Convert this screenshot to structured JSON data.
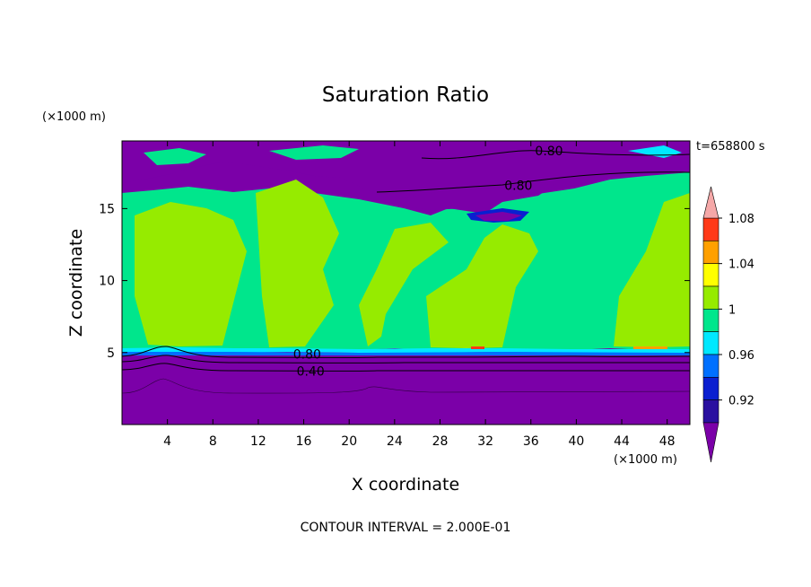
{
  "chart_data": {
    "type": "heatmap",
    "title": "Saturation Ratio",
    "xlabel": "X coordinate",
    "ylabel": "Z coordinate",
    "x_unit": "(×1000 m)",
    "y_unit": "(×1000 m)",
    "xlim": [
      0,
      50
    ],
    "ylim": [
      0,
      19.7
    ],
    "x_ticks": [
      4,
      8,
      12,
      16,
      20,
      24,
      28,
      32,
      36,
      40,
      44,
      48
    ],
    "y_ticks": [
      5,
      10,
      15
    ],
    "time_label": "t=658800 s",
    "footer": "CONTOUR INTERVAL = 2.000E-01",
    "contour_labels": [
      {
        "text": "0.80",
        "x": 37.6,
        "y": 19.0
      },
      {
        "text": "0.80",
        "x": 34.9,
        "y": 16.6
      },
      {
        "text": "0.80",
        "x": 16.3,
        "y": 4.9
      },
      {
        "text": "0.40",
        "x": 16.6,
        "y": 3.7
      }
    ],
    "colorbar": {
      "levels": [
        "<0.92",
        "0.92–0.94",
        "0.94–0.96",
        "0.96–0.98",
        "0.98–1",
        "1–1.02",
        "1.02–1.04",
        "1.04–1.06",
        "1.06–1.08",
        "1.08–1.10",
        ">1.10"
      ],
      "colors": [
        "#7b00a8",
        "#2a10a0",
        "#0a1fd0",
        "#0070ff",
        "#00e8ff",
        "#00e68c",
        "#96eb00",
        "#ffff00",
        "#ffa000",
        "#ff3a18",
        "#f5a8a8"
      ],
      "tick_labels": [
        "0.92",
        "0.96",
        "1",
        "1.04",
        "1.08"
      ],
      "extend": "both"
    }
  }
}
